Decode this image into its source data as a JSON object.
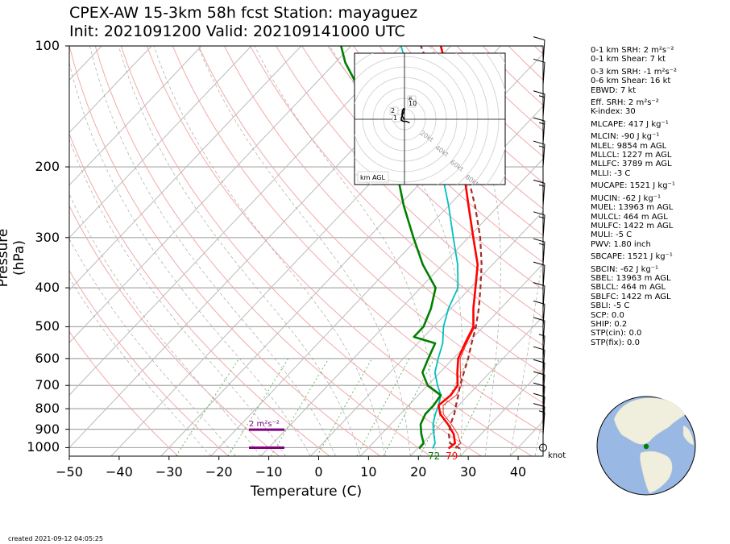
{
  "title_line1": "CPEX-AW 15-3km  58h fcst  Station: mayaguez",
  "title_line2": "Init: 2021091200  Valid: 202109141000 UTC",
  "ylabel": "Pressure (hPa)",
  "xlabel": "Temperature (C)",
  "y_ticks": [
    "100",
    "200",
    "300",
    "400",
    "500",
    "600",
    "700",
    "800",
    "900",
    "1000"
  ],
  "x_ticks": [
    "−50",
    "−40",
    "−30",
    "−20",
    "−10",
    "0",
    "10",
    "20",
    "30",
    "40"
  ],
  "surface_dewpoint_label": "72",
  "surface_temp_label": "79",
  "wind_unit": "knot",
  "hodograph": {
    "label": "km AGL",
    "ring_labels": [
      "20kt",
      "40kt",
      "60kt",
      "80kt"
    ],
    "height_labels": [
      "2",
      "1",
      "6",
      "10"
    ]
  },
  "srh_layer_label": "2 m²s⁻²",
  "indices": [
    "0-1 km SRH: 2 m²s⁻²",
    "0-1 km Shear: 7 kt",
    "0-3 km SRH: -1 m²s⁻²",
    "0-6 km Shear: 16 kt",
    "EBWD: 7 kt",
    "Eff. SRH: 2 m²s⁻²",
    "K-index: 30",
    "MLCAPE: 417 J kg⁻¹",
    "MLCIN: -90 J kg⁻¹",
    "MLEL: 9854 m AGL",
    "MLLCL: 1227 m AGL",
    "MLLFC: 3789 m AGL",
    "MLLI: -3 C",
    "MUCAPE: 1521 J kg⁻¹",
    "MUCIN: -62 J kg⁻¹",
    "MUEL: 13963 m AGL",
    "MULCL: 464 m AGL",
    "MULFC: 1422 m AGL",
    "MULI: -5 C",
    "PWV: 1.80 inch",
    "SBCAPE: 1521 J kg⁻¹",
    "SBCIN: -62 J kg⁻¹",
    "SBEL: 13963 m AGL",
    "SBLCL: 464 m AGL",
    "SBLFC: 1422 m AGL",
    "SBLI: -5 C",
    "SCP: 0.0",
    "SHIP: 0.2",
    "STP(cin): 0.0",
    "STP(fix): 0.0"
  ],
  "created": "created 2021-09-12 04:05:25",
  "colors": {
    "temperature": "#ff0000",
    "dewpoint": "#008000",
    "wetbulb": "#00c0c0",
    "parcel": "#a52a2a",
    "isobar": "#a9a9a9",
    "dry_adiabat": "#f4a9a9",
    "mixing_ratio": "#66bb66",
    "srh_layer": "#800080",
    "globe_ocean": "#99b8e3",
    "globe_land": "#f0eedc"
  },
  "chart_data": {
    "type": "line",
    "title": "CPEX-AW 15-3km  58h fcst  Station: mayaguez",
    "xlabel": "Temperature (C)",
    "ylabel": "Pressure (hPa)",
    "xlim": [
      -50,
      45
    ],
    "ylim": [
      1050,
      100
    ],
    "y_scale": "log",
    "skew": true,
    "series": [
      {
        "name": "Temperature",
        "points": [
          [
            26.2,
            1005
          ],
          [
            26.5,
            975
          ],
          [
            24.5,
            925
          ],
          [
            21.5,
            875
          ],
          [
            18,
            825
          ],
          [
            16,
            785
          ],
          [
            16.5,
            740
          ],
          [
            16,
            700
          ],
          [
            13.5,
            650
          ],
          [
            11,
            600
          ],
          [
            9.5,
            550
          ],
          [
            8,
            500
          ],
          [
            4.5,
            450
          ],
          [
            1,
            400
          ],
          [
            -3,
            350
          ],
          [
            -9,
            300
          ],
          [
            -16,
            250
          ],
          [
            -24.5,
            200
          ],
          [
            -35,
            150
          ],
          [
            -52,
            100
          ]
        ]
      },
      {
        "name": "Dewpoint",
        "points": [
          [
            20.3,
            1005
          ],
          [
            20.2,
            975
          ],
          [
            18,
            925
          ],
          [
            16,
            875
          ],
          [
            15,
            825
          ],
          [
            15,
            785
          ],
          [
            14.5,
            740
          ],
          [
            10,
            700
          ],
          [
            6.5,
            650
          ],
          [
            5,
            600
          ],
          [
            3.5,
            550
          ],
          [
            -2,
            530
          ],
          [
            -2,
            500
          ],
          [
            -4,
            450
          ],
          [
            -7,
            400
          ],
          [
            -14,
            350
          ],
          [
            -21,
            300
          ],
          [
            -29,
            250
          ],
          [
            -38,
            200
          ],
          [
            -52,
            150
          ],
          [
            -68,
            110
          ],
          [
            -72,
            100
          ]
        ]
      },
      {
        "name": "Wet-bulb",
        "points": [
          [
            23,
            1005
          ],
          [
            22.5,
            975
          ],
          [
            20.5,
            925
          ],
          [
            18.5,
            875
          ],
          [
            17,
            825
          ],
          [
            16,
            785
          ],
          [
            14.5,
            740
          ],
          [
            12,
            700
          ],
          [
            9,
            650
          ],
          [
            7,
            600
          ],
          [
            5,
            550
          ],
          [
            2,
            500
          ],
          [
            -0.5,
            450
          ],
          [
            -2.5,
            400
          ],
          [
            -7,
            350
          ],
          [
            -13,
            300
          ],
          [
            -20,
            250
          ],
          [
            -29,
            200
          ],
          [
            -42,
            150
          ],
          [
            -60,
            100
          ]
        ]
      },
      {
        "name": "Parcel",
        "points": [
          [
            28.5,
            1005
          ],
          [
            25.5,
            975
          ],
          [
            23.5,
            925
          ],
          [
            22,
            875
          ],
          [
            20.8,
            825
          ],
          [
            19.5,
            785
          ],
          [
            18,
            740
          ],
          [
            16.5,
            700
          ],
          [
            14.8,
            650
          ],
          [
            13,
            600
          ],
          [
            10.8,
            550
          ],
          [
            8.5,
            500
          ],
          [
            5.6,
            450
          ],
          [
            2,
            400
          ],
          [
            -2.2,
            350
          ],
          [
            -7.6,
            300
          ],
          [
            -14.7,
            250
          ],
          [
            -24,
            200
          ],
          [
            -37,
            150
          ],
          [
            -56,
            100
          ]
        ]
      },
      {
        "name": "Virtual temperature",
        "points": [
          [
            27.5,
            1005
          ],
          [
            27.6,
            975
          ],
          [
            25.3,
            925
          ],
          [
            22.2,
            875
          ],
          [
            18.6,
            825
          ],
          [
            16.9,
            785
          ],
          [
            17.6,
            740
          ],
          [
            16.8,
            700
          ],
          [
            14.1,
            650
          ],
          [
            11.4,
            600
          ],
          [
            9.8,
            550
          ],
          [
            8.3,
            500
          ]
        ]
      }
    ],
    "surface": {
      "temperature_F": 79,
      "dewpoint_F": 72
    },
    "srh_layer": {
      "top_hPa": 902,
      "bottom_hPa": 1000,
      "label": "2 m²s⁻²"
    },
    "wind_profile_kt": [
      {
        "p": 1000,
        "spd": 0
      },
      {
        "p": 930,
        "spd": 5
      },
      {
        "p": 900,
        "spd": 10
      },
      {
        "p": 850,
        "spd": 12
      },
      {
        "p": 800,
        "spd": 10
      },
      {
        "p": 750,
        "spd": 10
      },
      {
        "p": 700,
        "spd": 10
      },
      {
        "p": 650,
        "spd": 10
      },
      {
        "p": 600,
        "spd": 5
      },
      {
        "p": 550,
        "spd": 10
      },
      {
        "p": 500,
        "spd": 10
      },
      {
        "p": 450,
        "spd": 10
      },
      {
        "p": 400,
        "spd": 10
      },
      {
        "p": 350,
        "spd": 15
      },
      {
        "p": 300,
        "spd": 15
      },
      {
        "p": 250,
        "spd": 15
      },
      {
        "p": 200,
        "spd": 15
      },
      {
        "p": 175,
        "spd": 15
      },
      {
        "p": 150,
        "spd": 15
      },
      {
        "p": 125,
        "spd": 10
      },
      {
        "p": 110,
        "spd": 10
      }
    ],
    "hodograph_uv": [
      [
        0,
        0
      ],
      [
        -1.5,
        2
      ],
      [
        -2.5,
        4
      ],
      [
        -2,
        8
      ],
      [
        -1,
        10
      ],
      [
        0,
        10
      ],
      [
        -1,
        6
      ],
      [
        -2,
        4
      ],
      [
        -3,
        1
      ],
      [
        -3,
        -1
      ],
      [
        -1,
        -2
      ],
      [
        2,
        -2
      ],
      [
        4,
        -3
      ],
      [
        5,
        -3
      ]
    ]
  }
}
